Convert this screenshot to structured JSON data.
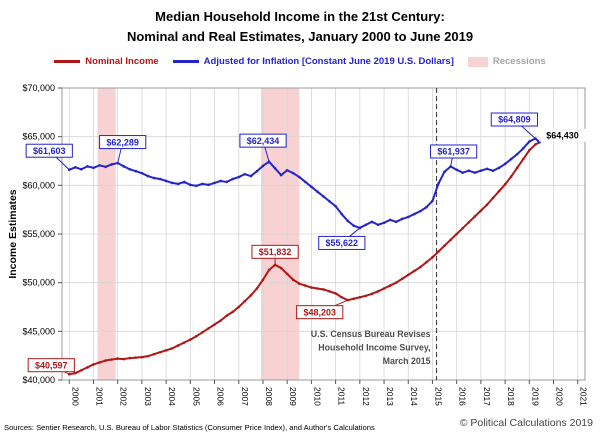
{
  "title": {
    "line1": "Median Household Income in the 21st Century:",
    "line2": "Nominal and Real Estimates, January 2000 to June 2019"
  },
  "legend": {
    "nominal": "Nominal Income",
    "adjusted": "Adjusted for Inflation [Constant June 2019 U.S. Dollars]",
    "recessions": "Recessions"
  },
  "axes": {
    "y_label": "Income Estimates"
  },
  "colors": {
    "nominal": "#b01818",
    "real": "#2424cc",
    "recession": "#f8d2d2",
    "recession_label": "#a6a6a6",
    "grid": "#d6d6d6",
    "border": "#9a9a9a",
    "census_note": "#4d4d4d",
    "end_label": "#000000"
  },
  "footer": {
    "sources": "Sources: Sentier Research, U.S. Bureau of Labor Statistics (Consumer Price Index), and Author's Calculations",
    "copyright": "© Political Calculations 2019"
  },
  "chart_data": {
    "type": "line",
    "title": "Median Household Income in the 21st Century: Nominal and Real Estimates, January 2000 to June 2019",
    "xlabel": "",
    "ylabel": "Income Estimates",
    "legend_position": "top",
    "grid": true,
    "xlim": [
      1999.7,
      2021.3
    ],
    "ylim": [
      40000,
      70000
    ],
    "x_ticks": [
      2000,
      2001,
      2002,
      2003,
      2004,
      2005,
      2006,
      2007,
      2008,
      2009,
      2010,
      2011,
      2012,
      2013,
      2014,
      2015,
      2016,
      2017,
      2018,
      2019,
      2020,
      2021
    ],
    "y_ticks": [
      {
        "v": 40000,
        "label": "$40,000"
      },
      {
        "v": 45000,
        "label": "$45,000"
      },
      {
        "v": 50000,
        "label": "$50,000"
      },
      {
        "v": 55000,
        "label": "$55,000"
      },
      {
        "v": 60000,
        "label": "$60,000"
      },
      {
        "v": 65000,
        "label": "$65,000"
      },
      {
        "v": 70000,
        "label": "$70,000"
      }
    ],
    "x": [
      2000,
      2000.25,
      2000.5,
      2000.75,
      2001,
      2001.25,
      2001.5,
      2001.75,
      2002,
      2002.25,
      2002.5,
      2002.75,
      2003,
      2003.25,
      2003.5,
      2003.75,
      2004,
      2004.25,
      2004.5,
      2004.75,
      2005,
      2005.25,
      2005.5,
      2005.75,
      2006,
      2006.25,
      2006.5,
      2006.75,
      2007,
      2007.25,
      2007.5,
      2007.75,
      2008,
      2008.25,
      2008.5,
      2008.75,
      2009,
      2009.25,
      2009.5,
      2009.75,
      2010,
      2010.25,
      2010.5,
      2010.75,
      2011,
      2011.25,
      2011.5,
      2011.75,
      2012,
      2012.25,
      2012.5,
      2012.75,
      2013,
      2013.25,
      2013.5,
      2013.75,
      2014,
      2014.25,
      2014.5,
      2014.75,
      2015,
      2015.25,
      2015.5,
      2015.75,
      2016,
      2016.25,
      2016.5,
      2016.75,
      2017,
      2017.25,
      2017.5,
      2017.75,
      2018,
      2018.25,
      2018.5,
      2018.75,
      2019,
      2019.25,
      2019.42
    ],
    "series": [
      {
        "id": "nominal",
        "name": "Nominal Income",
        "color": "#b01818",
        "values": [
          40597,
          40700,
          41000,
          41300,
          41600,
          41800,
          42000,
          42100,
          42200,
          42150,
          42250,
          42300,
          42350,
          42450,
          42650,
          42850,
          43050,
          43250,
          43550,
          43850,
          44150,
          44500,
          44900,
          45300,
          45700,
          46100,
          46600,
          47000,
          47500,
          48100,
          48700,
          49400,
          50300,
          51300,
          51832,
          51500,
          50900,
          50300,
          49900,
          49700,
          49500,
          49400,
          49300,
          49100,
          48900,
          48500,
          48203,
          48350,
          48500,
          48650,
          48850,
          49100,
          49400,
          49700,
          50000,
          50400,
          50800,
          51200,
          51600,
          52100,
          52600,
          53200,
          53800,
          54400,
          55000,
          55600,
          56200,
          56800,
          57400,
          58000,
          58700,
          59400,
          60100,
          60900,
          61800,
          62700,
          63600,
          64200,
          64430
        ]
      },
      {
        "id": "real",
        "name": "Adjusted for Inflation [Constant June 2019 U.S. Dollars]",
        "color": "#2424cc",
        "values": [
          61603,
          61850,
          61650,
          61950,
          61800,
          62050,
          61900,
          62150,
          62289,
          61950,
          61650,
          61450,
          61250,
          60950,
          60750,
          60650,
          60450,
          60250,
          60150,
          60350,
          60050,
          59950,
          60150,
          60050,
          60250,
          60450,
          60350,
          60650,
          60850,
          61150,
          60950,
          61450,
          62000,
          62434,
          61750,
          61050,
          61550,
          61250,
          60850,
          60350,
          59850,
          59350,
          58850,
          58350,
          57850,
          57050,
          56350,
          55850,
          55622,
          55950,
          56250,
          55950,
          56150,
          56450,
          56250,
          56550,
          56750,
          57050,
          57350,
          57750,
          58400,
          60200,
          61400,
          61937,
          61600,
          61300,
          61500,
          61300,
          61500,
          61700,
          61500,
          61800,
          62200,
          62700,
          63200,
          63800,
          64500,
          64809,
          64430
        ]
      }
    ],
    "recessions": [
      [
        2001.17,
        2001.92
      ],
      [
        2007.92,
        2009.5
      ]
    ],
    "revision_line": {
      "x": 2015.17,
      "note_lines": [
        "U.S. Census Bureau Revises",
        "Household Income Survey,",
        "March 2015"
      ]
    },
    "annotations": [
      {
        "label": "$61,603",
        "series": "real",
        "x": 2000,
        "y": 61603,
        "ox": -20,
        "oy": -19
      },
      {
        "label": "$62,289",
        "series": "real",
        "x": 2002,
        "y": 62289,
        "ox": 5,
        "oy": -21
      },
      {
        "label": "$62,434",
        "series": "real",
        "x": 2008.25,
        "y": 62434,
        "ox": -6,
        "oy": -21
      },
      {
        "label": "$55,622",
        "series": "real",
        "x": 2012,
        "y": 55622,
        "ox": -18,
        "oy": 15
      },
      {
        "label": "$61,937",
        "series": "real",
        "x": 2015.75,
        "y": 61937,
        "ox": 3,
        "oy": -15
      },
      {
        "label": "$64,809",
        "series": "real",
        "x": 2019.25,
        "y": 64809,
        "ox": -21,
        "oy": -19
      },
      {
        "label": "$40,597",
        "series": "nominal",
        "x": 2000,
        "y": 40597,
        "ox": -18,
        "oy": -9
      },
      {
        "label": "$51,832",
        "series": "nominal",
        "x": 2008.5,
        "y": 51832,
        "ox": 0,
        "oy": -13
      },
      {
        "label": "$48,203",
        "series": "nominal",
        "x": 2011.5,
        "y": 48203,
        "ox": -28,
        "oy": 12
      },
      {
        "label": "$64,430",
        "series": "end",
        "x": 2019.42,
        "y": 64430,
        "ox": 23,
        "oy": -7,
        "boxed": false
      }
    ]
  }
}
